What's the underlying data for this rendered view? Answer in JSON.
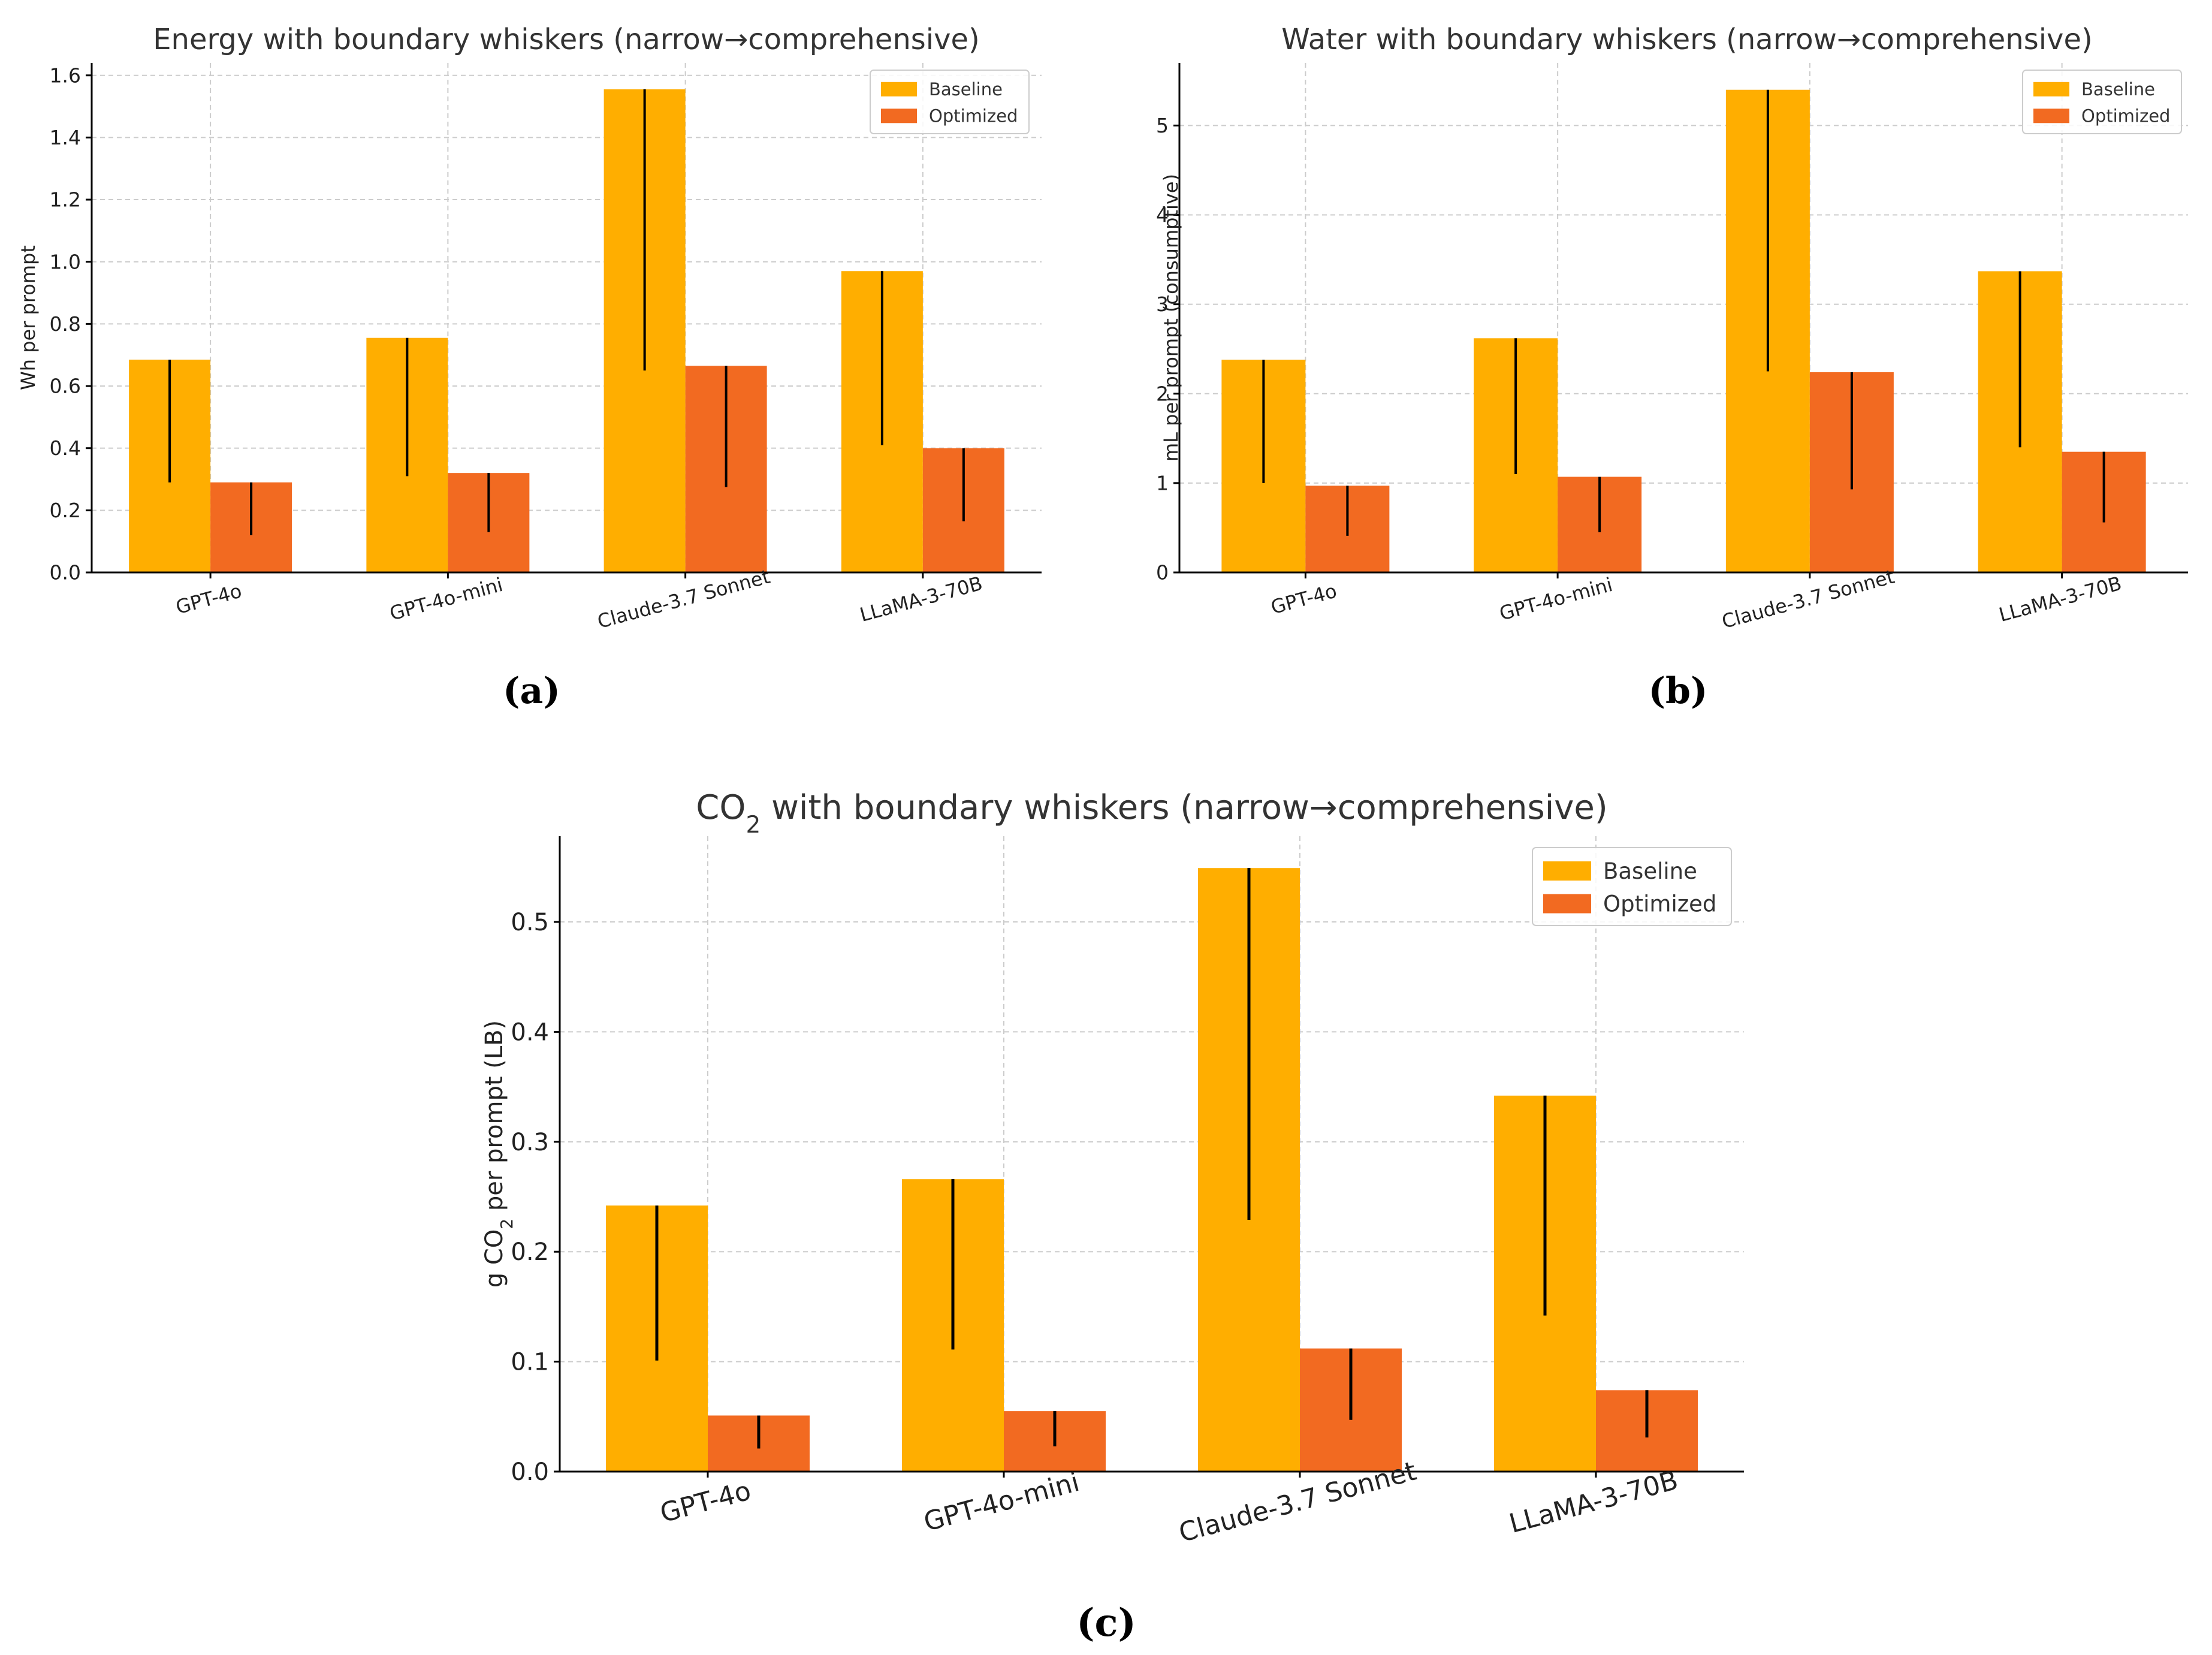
{
  "colors": {
    "baseline": "#FFAE00",
    "optimized": "#F26A21",
    "whisker": "#000000",
    "grid": "#cccccc"
  },
  "captions": {
    "a": "(a)",
    "b": "(b)",
    "c": "(c)"
  },
  "chart_data": [
    {
      "type": "bar",
      "title": "Energy with boundary whiskers (narrow→comprehensive)",
      "xlabel": "",
      "ylabel": "Wh per prompt",
      "ylim": [
        0,
        1.64
      ],
      "yticks": [
        0.0,
        0.2,
        0.4,
        0.6,
        0.8,
        1.0,
        1.2,
        1.4,
        1.6
      ],
      "ytick_labels": [
        "0.0",
        "0.2",
        "0.4",
        "0.6",
        "0.8",
        "1.0",
        "1.2",
        "1.4",
        "1.6"
      ],
      "categories": [
        "GPT-4o",
        "GPT-4o-mini",
        "Claude-3.7 Sonnet",
        "LLaMA-3-70B"
      ],
      "legend_location": "upper right",
      "grid": true,
      "series": [
        {
          "name": "Baseline",
          "values": [
            0.685,
            0.755,
            1.555,
            0.97
          ],
          "whisker_low": [
            0.29,
            0.31,
            0.65,
            0.41
          ]
        },
        {
          "name": "Optimized",
          "values": [
            0.29,
            0.32,
            0.665,
            0.4
          ],
          "whisker_low": [
            0.12,
            0.13,
            0.275,
            0.165
          ]
        }
      ]
    },
    {
      "type": "bar",
      "title": "Water with boundary whiskers (narrow→comprehensive)",
      "xlabel": "",
      "ylabel": "mL per prompt (consumptive)",
      "ylim": [
        0,
        5.7
      ],
      "yticks": [
        0,
        1,
        2,
        3,
        4,
        5
      ],
      "ytick_labels": [
        "0",
        "1",
        "2",
        "3",
        "4",
        "5"
      ],
      "categories": [
        "GPT-4o",
        "GPT-4o-mini",
        "Claude-3.7 Sonnet",
        "LLaMA-3-70B"
      ],
      "legend_location": "upper right",
      "grid": true,
      "series": [
        {
          "name": "Baseline",
          "values": [
            2.38,
            2.62,
            5.4,
            3.37
          ],
          "whisker_low": [
            1.0,
            1.1,
            2.25,
            1.4
          ]
        },
        {
          "name": "Optimized",
          "values": [
            0.97,
            1.07,
            2.24,
            1.35
          ],
          "whisker_low": [
            0.41,
            0.45,
            0.93,
            0.56
          ]
        }
      ]
    },
    {
      "type": "bar",
      "title": "CO₂ with boundary whiskers (narrow→comprehensive)",
      "xlabel": "",
      "ylabel": "g CO₂ per prompt (LB)",
      "ylim": [
        0,
        0.578
      ],
      "yticks": [
        0.0,
        0.1,
        0.2,
        0.3,
        0.4,
        0.5
      ],
      "ytick_labels": [
        "0.0",
        "0.1",
        "0.2",
        "0.3",
        "0.4",
        "0.5"
      ],
      "categories": [
        "GPT-4o",
        "GPT-4o-mini",
        "Claude-3.7 Sonnet",
        "LLaMA-3-70B"
      ],
      "legend_location": "upper right",
      "grid": true,
      "series": [
        {
          "name": "Baseline",
          "values": [
            0.242,
            0.266,
            0.549,
            0.342
          ],
          "whisker_low": [
            0.101,
            0.111,
            0.229,
            0.142
          ]
        },
        {
          "name": "Optimized",
          "values": [
            0.051,
            0.055,
            0.112,
            0.074
          ],
          "whisker_low": [
            0.021,
            0.023,
            0.047,
            0.031
          ]
        }
      ]
    }
  ]
}
